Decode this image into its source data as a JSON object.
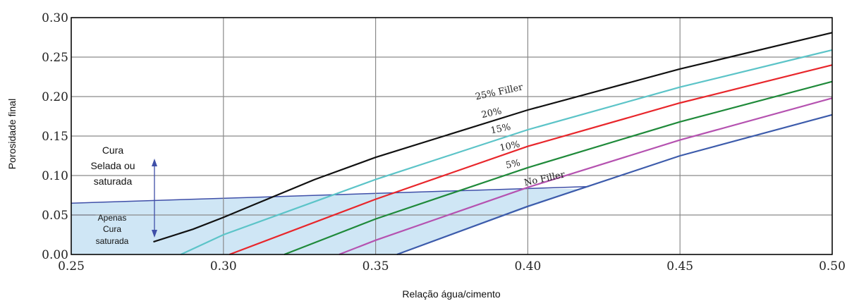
{
  "chart_data": {
    "type": "line",
    "xlabel": "Relação água/cimento",
    "ylabel": "Porosidade final",
    "xlim": [
      0.25,
      0.5
    ],
    "ylim": [
      0.0,
      0.3
    ],
    "x_ticks": [
      "0.25",
      "0.30",
      "0.35",
      "0.40",
      "0.45",
      "0.50"
    ],
    "y_ticks": [
      "0.00",
      "0.05",
      "0.10",
      "0.15",
      "0.20",
      "0.25",
      "0.30"
    ],
    "grid": true,
    "series": [
      {
        "name": "25% Filler",
        "color": "#111111",
        "points": [
          [
            0.277,
            0.016
          ],
          [
            0.29,
            0.032
          ],
          [
            0.3,
            0.047
          ],
          [
            0.31,
            0.063
          ],
          [
            0.33,
            0.095
          ],
          [
            0.35,
            0.123
          ],
          [
            0.4,
            0.183
          ],
          [
            0.45,
            0.235
          ],
          [
            0.5,
            0.281
          ]
        ]
      },
      {
        "name": "20%",
        "color": "#5cc4c8",
        "points": [
          [
            0.286,
            0.0
          ],
          [
            0.3,
            0.025
          ],
          [
            0.35,
            0.095
          ],
          [
            0.4,
            0.158
          ],
          [
            0.45,
            0.212
          ],
          [
            0.5,
            0.259
          ]
        ]
      },
      {
        "name": "15%",
        "color": "#e8262b",
        "points": [
          [
            0.302,
            0.0
          ],
          [
            0.35,
            0.07
          ],
          [
            0.4,
            0.137
          ],
          [
            0.45,
            0.192
          ],
          [
            0.5,
            0.24
          ]
        ]
      },
      {
        "name": "10%",
        "color": "#1f8a3a",
        "points": [
          [
            0.32,
            0.0
          ],
          [
            0.35,
            0.045
          ],
          [
            0.4,
            0.11
          ],
          [
            0.45,
            0.168
          ],
          [
            0.5,
            0.219
          ]
        ]
      },
      {
        "name": "5%",
        "color": "#b552b0",
        "points": [
          [
            0.338,
            0.0
          ],
          [
            0.35,
            0.018
          ],
          [
            0.4,
            0.085
          ],
          [
            0.45,
            0.145
          ],
          [
            0.5,
            0.198
          ]
        ]
      },
      {
        "name": "No Filler",
        "color": "#3c5bab",
        "points": [
          [
            0.357,
            0.0
          ],
          [
            0.4,
            0.061
          ],
          [
            0.45,
            0.125
          ],
          [
            0.5,
            0.177
          ]
        ]
      }
    ],
    "region": {
      "fill": "#cfe6f5",
      "edge": "#3f4fa8",
      "boundary": [
        [
          0.25,
          0.065
        ],
        [
          0.42,
          0.086
        ]
      ]
    },
    "annotations": {
      "upper": [
        "Cura",
        "Selada ou",
        "saturada"
      ],
      "lower": [
        "Apenas",
        "Cura",
        "saturada"
      ]
    }
  }
}
